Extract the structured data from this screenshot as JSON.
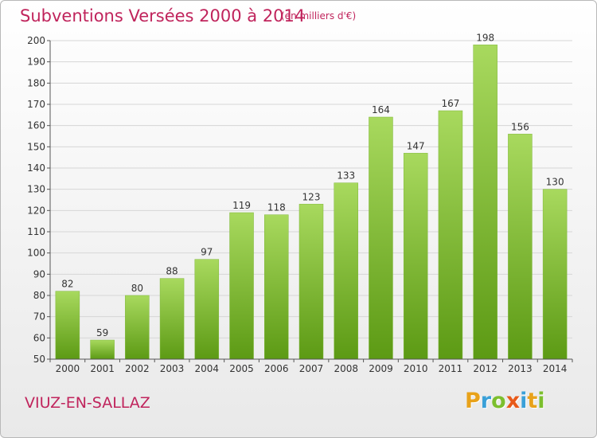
{
  "header": {
    "title": "Subventions Versées 2000 à 2014",
    "subtitle": "(en milliers d'€)"
  },
  "footer": {
    "commune": "VIUZ-EN-SALLAZ",
    "logo_letters": [
      {
        "char": "P",
        "color": "#e8a21a"
      },
      {
        "char": "r",
        "color": "#3aa0d8"
      },
      {
        "char": "o",
        "color": "#7cbf2e"
      },
      {
        "char": "x",
        "color": "#e85a1a"
      },
      {
        "char": "i",
        "color": "#3aa0d8"
      },
      {
        "char": "t",
        "color": "#e8a21a"
      },
      {
        "char": "i",
        "color": "#7cbf2e"
      }
    ]
  },
  "colors": {
    "accent": "#c0245c",
    "bar_light": "#a8d95e",
    "bar_dark": "#5c9a14",
    "grid": "#d6d6d6"
  },
  "chart_data": {
    "type": "bar",
    "categories": [
      "2000",
      "2001",
      "2002",
      "2003",
      "2004",
      "2005",
      "2006",
      "2007",
      "2008",
      "2009",
      "2010",
      "2011",
      "2012",
      "2013",
      "2014"
    ],
    "values": [
      82,
      59,
      80,
      88,
      97,
      119,
      118,
      123,
      133,
      164,
      147,
      167,
      198,
      156,
      130
    ],
    "ylim": [
      50,
      200
    ],
    "yticks": [
      50,
      60,
      70,
      80,
      90,
      100,
      110,
      120,
      130,
      140,
      150,
      160,
      170,
      180,
      190,
      200
    ],
    "grid": true,
    "data_labels": true
  }
}
